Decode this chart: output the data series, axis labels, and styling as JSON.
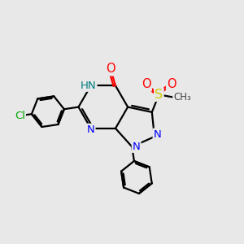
{
  "bg_color": "#e8e8e8",
  "bond_color": "#000000",
  "bond_width": 1.6,
  "atom_colors": {
    "N": "#0000ff",
    "O": "#ff0000",
    "S": "#cccc00",
    "Cl": "#00aa00",
    "C": "#000000",
    "H": "#008080"
  },
  "font_size": 9.5,
  "fig_size": [
    3.0,
    3.0
  ],
  "dpi": 100
}
